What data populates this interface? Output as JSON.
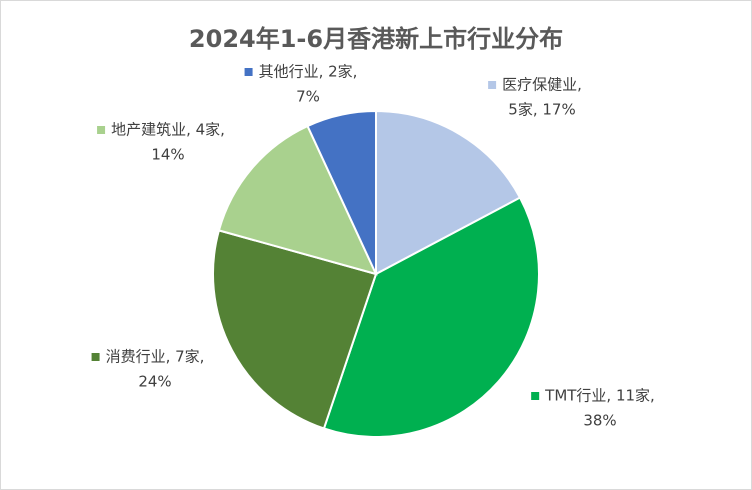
{
  "chart_data": {
    "type": "pie",
    "title": "2024年1-6月香港新上市行业分布",
    "categories": [
      "医疗保健业",
      "TMT行业",
      "消费行业",
      "地产建筑业",
      "其他行业"
    ],
    "values": [
      5,
      11,
      7,
      4,
      2
    ],
    "value_labels": [
      "医疗保健业, 5家, 17%",
      "TMT行业, 11家, 38%",
      "消费行业, 7家, 24%",
      "地产建筑业, 4家, 14%",
      "其他行业, 2家, 7%"
    ],
    "colors": [
      "#b4c7e7",
      "#00b050",
      "#548235",
      "#a9d18e",
      "#4472c4"
    ]
  }
}
